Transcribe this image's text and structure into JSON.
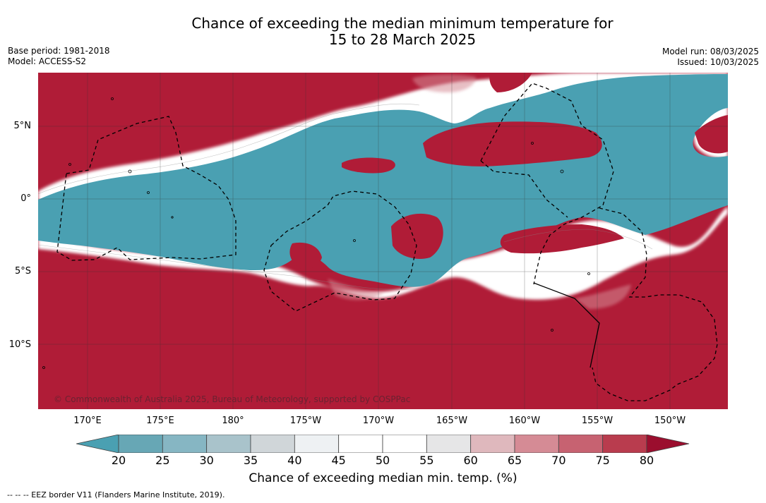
{
  "title_line1": "Chance of exceeding the median minimum temperature for",
  "title_line2": "15 to 28 March 2025",
  "meta": {
    "base_period": "Base period: 1981-2018",
    "model": "Model: ACCESS-S2",
    "model_run": "Model run: 08/03/2025",
    "issued": "Issued: 10/03/2025"
  },
  "map": {
    "lat_labels": [
      "5°N",
      "0°",
      "5°S",
      "10°S"
    ],
    "lon_labels": [
      "170°E",
      "175°E",
      "180°",
      "175°W",
      "170°W",
      "165°W",
      "160°W",
      "155°W",
      "150°W"
    ],
    "copyright": "© Commonwealth of Australia 2025, Bureau of Meteorology, supported by COSPPac",
    "colors": {
      "warm": "#b01c37",
      "cool": "#4aa0b2",
      "neutral": "#ffffff"
    }
  },
  "colorbar": {
    "ticks": [
      "20",
      "25",
      "30",
      "35",
      "40",
      "45",
      "50",
      "55",
      "60",
      "65",
      "70",
      "75",
      "80"
    ],
    "colors": [
      "#67a7b5",
      "#86b6c3",
      "#a9c3cb",
      "#d0d6d9",
      "#eef1f3",
      "#ffffff",
      "#ffffff",
      "#e6e6e7",
      "#dfb8bd",
      "#d58b95",
      "#c76271",
      "#b93c4e"
    ],
    "under_color": "#4aa0b2",
    "over_color": "#9b0e2e",
    "title": "Chance of exceeding median min. temp. (%)"
  },
  "footer": "--  --  -- EEZ border V11 (Flanders Marine Institute, 2019)."
}
